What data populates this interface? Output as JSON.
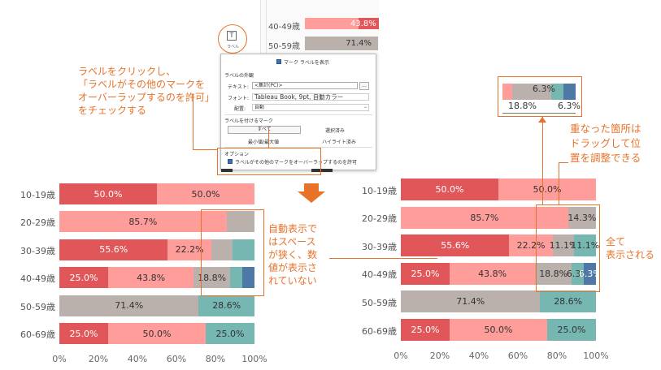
{
  "top_partial": {
    "rows": [
      {
        "label": "40-49歳",
        "value": "43.8%"
      },
      {
        "label": "50-59歳",
        "value": "71.4%"
      }
    ]
  },
  "label_button": {
    "icon": "text-label-icon",
    "caption": "ラベル"
  },
  "dialog": {
    "show_marks_label": "マーク ラベルを表示",
    "appearance_title": "ラベルの外観",
    "text_label": "テキスト:",
    "text_value": "<集計(PC)>",
    "text_btn": "...",
    "font_label": "フォント:",
    "font_value": "Tableau Book, 9pt, 自動カラー",
    "align_label": "配置:",
    "align_value": "自動",
    "marks_title": "ラベルを付けるマーク",
    "opt_all": "すべて",
    "opt_selected": "選択済み",
    "opt_minmax": "最小値/最大値",
    "opt_highlight": "ハイライト済み",
    "options_title": "オプション",
    "allow_overlap": "ラベルがその他のマークをオーバーラップするのを許可"
  },
  "annotations": {
    "click_label": [
      "ラベルをクリックし、",
      "「ラベルがその他のマークを",
      "オーバーラップするのを許可」",
      "をチェックする"
    ],
    "auto_display": [
      "自動表示で",
      "はスペース",
      "が狭く、数",
      "値が表示さ",
      "れていない"
    ],
    "overlap_drag": [
      "重なった箇所は",
      "ドラッグして位",
      "置を調整できる"
    ],
    "all_shown": [
      "全て",
      "表示される"
    ]
  },
  "colors": {
    "red": "#e15759",
    "pink": "#ff9d9a",
    "gray": "#bab0ac",
    "teal": "#76b7b2",
    "blue": "#4e79a7",
    "orange": "#e8722a"
  },
  "zoom_sample": {
    "top_value": "6.3%",
    "bottom_left": "18.8%",
    "bottom_right": "6.3%"
  },
  "chart_data": [
    {
      "type": "bar",
      "orientation": "horizontal-stacked-100",
      "categories": [
        "10-19歳",
        "20-29歳",
        "30-39歳",
        "40-49歳",
        "50-59歳",
        "60-69歳"
      ],
      "series": [
        {
          "color": "#e15759",
          "values": [
            50.0,
            0,
            55.6,
            25.0,
            0,
            25.0
          ]
        },
        {
          "color": "#ff9d9a",
          "values": [
            50.0,
            85.7,
            22.2,
            43.8,
            0,
            50.0
          ]
        },
        {
          "color": "#bab0ac",
          "values": [
            0,
            14.3,
            11.1,
            18.8,
            71.4,
            0
          ]
        },
        {
          "color": "#76b7b2",
          "values": [
            0,
            0,
            11.1,
            6.3,
            28.6,
            25.0
          ]
        },
        {
          "color": "#4e79a7",
          "values": [
            0,
            0,
            0,
            6.3,
            0,
            0
          ]
        }
      ],
      "labels": [
        [
          "50.0%",
          "50.0%",
          "",
          "",
          ""
        ],
        [
          "",
          "85.7%",
          "",
          "",
          ""
        ],
        [
          "55.6%",
          "22.2%",
          "",
          "",
          ""
        ],
        [
          "25.0%",
          "43.8%",
          "18.8%",
          "",
          ""
        ],
        [
          "",
          "",
          "71.4%",
          "28.6%",
          ""
        ],
        [
          "25.0%",
          "50.0%",
          "",
          "25.0%",
          ""
        ]
      ],
      "xticks": [
        "0%",
        "20%",
        "40%",
        "60%",
        "80%",
        "100%"
      ]
    },
    {
      "type": "bar",
      "orientation": "horizontal-stacked-100",
      "categories": [
        "10-19歳",
        "20-29歳",
        "30-39歳",
        "40-49歳",
        "50-59歳",
        "60-69歳"
      ],
      "series": [
        {
          "color": "#e15759",
          "values": [
            50.0,
            0,
            55.6,
            25.0,
            0,
            25.0
          ]
        },
        {
          "color": "#ff9d9a",
          "values": [
            50.0,
            85.7,
            22.2,
            43.8,
            0,
            50.0
          ]
        },
        {
          "color": "#bab0ac",
          "values": [
            0,
            14.3,
            11.1,
            18.8,
            71.4,
            0
          ]
        },
        {
          "color": "#76b7b2",
          "values": [
            0,
            0,
            11.1,
            6.3,
            28.6,
            25.0
          ]
        },
        {
          "color": "#4e79a7",
          "values": [
            0,
            0,
            0,
            6.3,
            0,
            0
          ]
        }
      ],
      "labels": [
        [
          "50.0%",
          "50.0%",
          "",
          "",
          ""
        ],
        [
          "",
          "85.7%",
          "14.3%",
          "",
          ""
        ],
        [
          "55.6%",
          "22.2%",
          "11.1%",
          "11.1%",
          ""
        ],
        [
          "25.0%",
          "43.8%",
          "18.8%",
          "6.3%",
          "6.3%"
        ],
        [
          "",
          "",
          "71.4%",
          "28.6%",
          ""
        ],
        [
          "25.0%",
          "50.0%",
          "",
          "25.0%",
          ""
        ]
      ],
      "xticks": [
        "0%",
        "20%",
        "40%",
        "60%",
        "80%",
        "100%"
      ]
    }
  ]
}
